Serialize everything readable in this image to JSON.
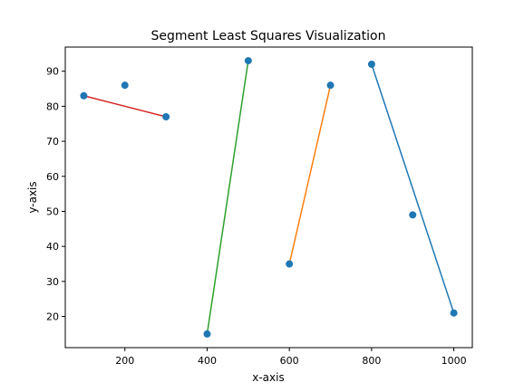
{
  "chart_data": {
    "type": "scatter",
    "title": "Segment Least Squares Visualization",
    "xlabel": "x-axis",
    "ylabel": "y-axis",
    "xlim": [
      55,
      1045
    ],
    "ylim": [
      11.1,
      96.9
    ],
    "x_ticks": [
      200,
      400,
      600,
      800,
      1000
    ],
    "y_ticks": [
      20,
      30,
      40,
      50,
      60,
      70,
      80,
      90
    ],
    "grid": false,
    "points": [
      {
        "x": 100,
        "y": 83
      },
      {
        "x": 200,
        "y": 86
      },
      {
        "x": 300,
        "y": 77
      },
      {
        "x": 400,
        "y": 15
      },
      {
        "x": 500,
        "y": 93
      },
      {
        "x": 600,
        "y": 35
      },
      {
        "x": 700,
        "y": 86
      },
      {
        "x": 800,
        "y": 92
      },
      {
        "x": 900,
        "y": 49
      },
      {
        "x": 1000,
        "y": 21
      }
    ],
    "point_color": "#1f77b4",
    "segments": [
      {
        "x": [
          100,
          300
        ],
        "y": [
          83,
          77
        ],
        "color": "#d62728"
      },
      {
        "x": [
          400,
          500
        ],
        "y": [
          15,
          93
        ],
        "color": "#2ca02c"
      },
      {
        "x": [
          600,
          700
        ],
        "y": [
          35,
          86
        ],
        "color": "#ff7f0e"
      },
      {
        "x": [
          800,
          1000
        ],
        "y": [
          92,
          21
        ],
        "color": "#1f77b4"
      }
    ]
  }
}
